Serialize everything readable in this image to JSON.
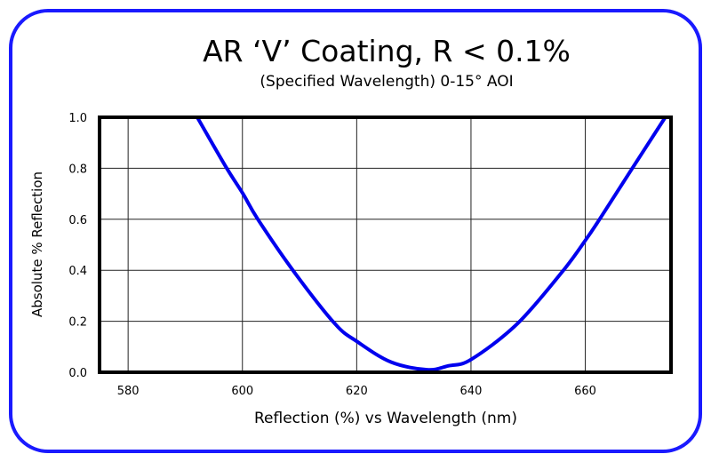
{
  "chart_data": {
    "type": "line",
    "title": "AR ‘V’ Coating, R < 0.1%",
    "subtitle": "(Specified Wavelength) 0-15° AOI",
    "xlabel": "Reflection (%) vs Wavelength (nm)",
    "ylabel": "Absolute % Reflection",
    "xlim": [
      575,
      675
    ],
    "ylim": [
      0,
      1.0
    ],
    "xticks": [
      580,
      600,
      620,
      640,
      660
    ],
    "xtick_labels": [
      "580",
      "600",
      "620",
      "640",
      "660"
    ],
    "yticks": [
      0,
      0.2,
      0.4,
      0.6,
      0.8,
      1.0
    ],
    "ytick_labels": [
      "0.0",
      "0.2",
      "0.4",
      "0.6",
      "0.8",
      "1.0"
    ],
    "grid": true,
    "series": [
      {
        "name": "AR V Coating",
        "color": "#0000ee",
        "x": [
          592.1,
          597.1,
          600.1,
          602.7,
          609,
          616.2,
          620.1,
          626,
          632.3,
          636,
          640,
          648.1,
          656,
          660.1,
          662.5,
          668.4,
          674
        ],
        "y": [
          1.0,
          0.806,
          0.7,
          0.6,
          0.395,
          0.19,
          0.12,
          0.04,
          0.01,
          0.025,
          0.05,
          0.19,
          0.395,
          0.52,
          0.6,
          0.806,
          1.0
        ]
      }
    ]
  },
  "colors": {
    "border": "#1a1aff",
    "curve": "#0000ee"
  }
}
